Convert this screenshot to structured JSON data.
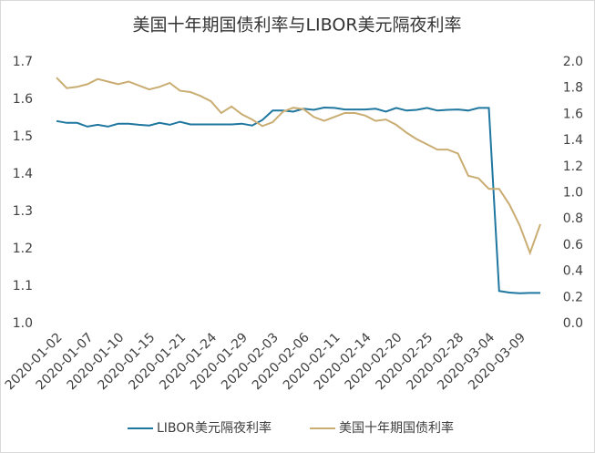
{
  "chart_data": {
    "type": "line",
    "title": "美国十年期国债利率与LIBOR美元隔夜利率",
    "categories": [
      "2020-01-02",
      null,
      null,
      "2020-01-07",
      null,
      null,
      "2020-01-10",
      null,
      null,
      "2020-01-15",
      null,
      null,
      "2020-01-21",
      null,
      null,
      "2020-01-24",
      null,
      null,
      "2020-01-29",
      null,
      null,
      "2020-02-03",
      null,
      null,
      "2020-02-06",
      null,
      null,
      "2020-02-11",
      null,
      null,
      "2020-02-14",
      null,
      null,
      "2020-02-20",
      null,
      null,
      "2020-02-25",
      null,
      null,
      "2020-02-28",
      null,
      null,
      "2020-03-04",
      null,
      null,
      "2020-03-09",
      null,
      null
    ],
    "series": [
      {
        "name": "LIBOR美元隔夜利率",
        "color": "#1f77a0",
        "axis": "y",
        "values": [
          1.542,
          1.537,
          1.537,
          1.527,
          1.532,
          1.527,
          1.535,
          1.535,
          1.532,
          1.53,
          1.537,
          1.532,
          1.54,
          1.533,
          1.533,
          1.533,
          1.533,
          1.533,
          1.535,
          1.53,
          1.545,
          1.57,
          1.57,
          1.567,
          1.575,
          1.572,
          1.578,
          1.577,
          1.573,
          1.573,
          1.573,
          1.575,
          1.567,
          1.577,
          1.57,
          1.572,
          1.577,
          1.57,
          1.572,
          1.573,
          1.57,
          1.577,
          1.577,
          1.087,
          1.083,
          1.081,
          1.082,
          1.082
        ]
      },
      {
        "name": "美国十年期国债利率",
        "color": "#c9ad72",
        "axis": "y2",
        "values": [
          1.88,
          1.8,
          1.81,
          1.83,
          1.87,
          1.85,
          1.83,
          1.85,
          1.82,
          1.79,
          1.81,
          1.84,
          1.78,
          1.77,
          1.74,
          1.7,
          1.61,
          1.66,
          1.6,
          1.56,
          1.51,
          1.54,
          1.62,
          1.65,
          1.64,
          1.58,
          1.55,
          1.58,
          1.61,
          1.61,
          1.59,
          1.55,
          1.56,
          1.52,
          1.46,
          1.41,
          1.37,
          1.33,
          1.33,
          1.3,
          1.13,
          1.11,
          1.03,
          1.03,
          0.91,
          0.75,
          0.54,
          0.76
        ]
      }
    ],
    "ylim": [
      1.0,
      1.7
    ],
    "yticks": [
      {
        "value": 1,
        "label": "1.0"
      },
      {
        "value": 1.1,
        "label": "1.1"
      },
      {
        "value": 1.2,
        "label": "1.2"
      },
      {
        "value": 1.3,
        "label": "1.3"
      },
      {
        "value": 1.4,
        "label": "1.4"
      },
      {
        "value": 1.5,
        "label": "1.5"
      },
      {
        "value": 1.6,
        "label": "1.6"
      },
      {
        "value": 1.7,
        "label": "1.7"
      }
    ],
    "y2lim": [
      0.0,
      2.0
    ],
    "y2ticks": [
      {
        "value": 0,
        "label": "0.0"
      },
      {
        "value": 0.2,
        "label": "0.2"
      },
      {
        "value": 0.4,
        "label": "0.4"
      },
      {
        "value": 0.6,
        "label": "0.6"
      },
      {
        "value": 0.8,
        "label": "0.8"
      },
      {
        "value": 1,
        "label": "1.0"
      },
      {
        "value": 1.2,
        "label": "1.2"
      },
      {
        "value": 1.4,
        "label": "1.4"
      },
      {
        "value": 1.6,
        "label": "1.6"
      },
      {
        "value": 1.8,
        "label": "1.8"
      },
      {
        "value": 2,
        "label": "2.0"
      }
    ],
    "grid": false,
    "legend": "bottom"
  }
}
